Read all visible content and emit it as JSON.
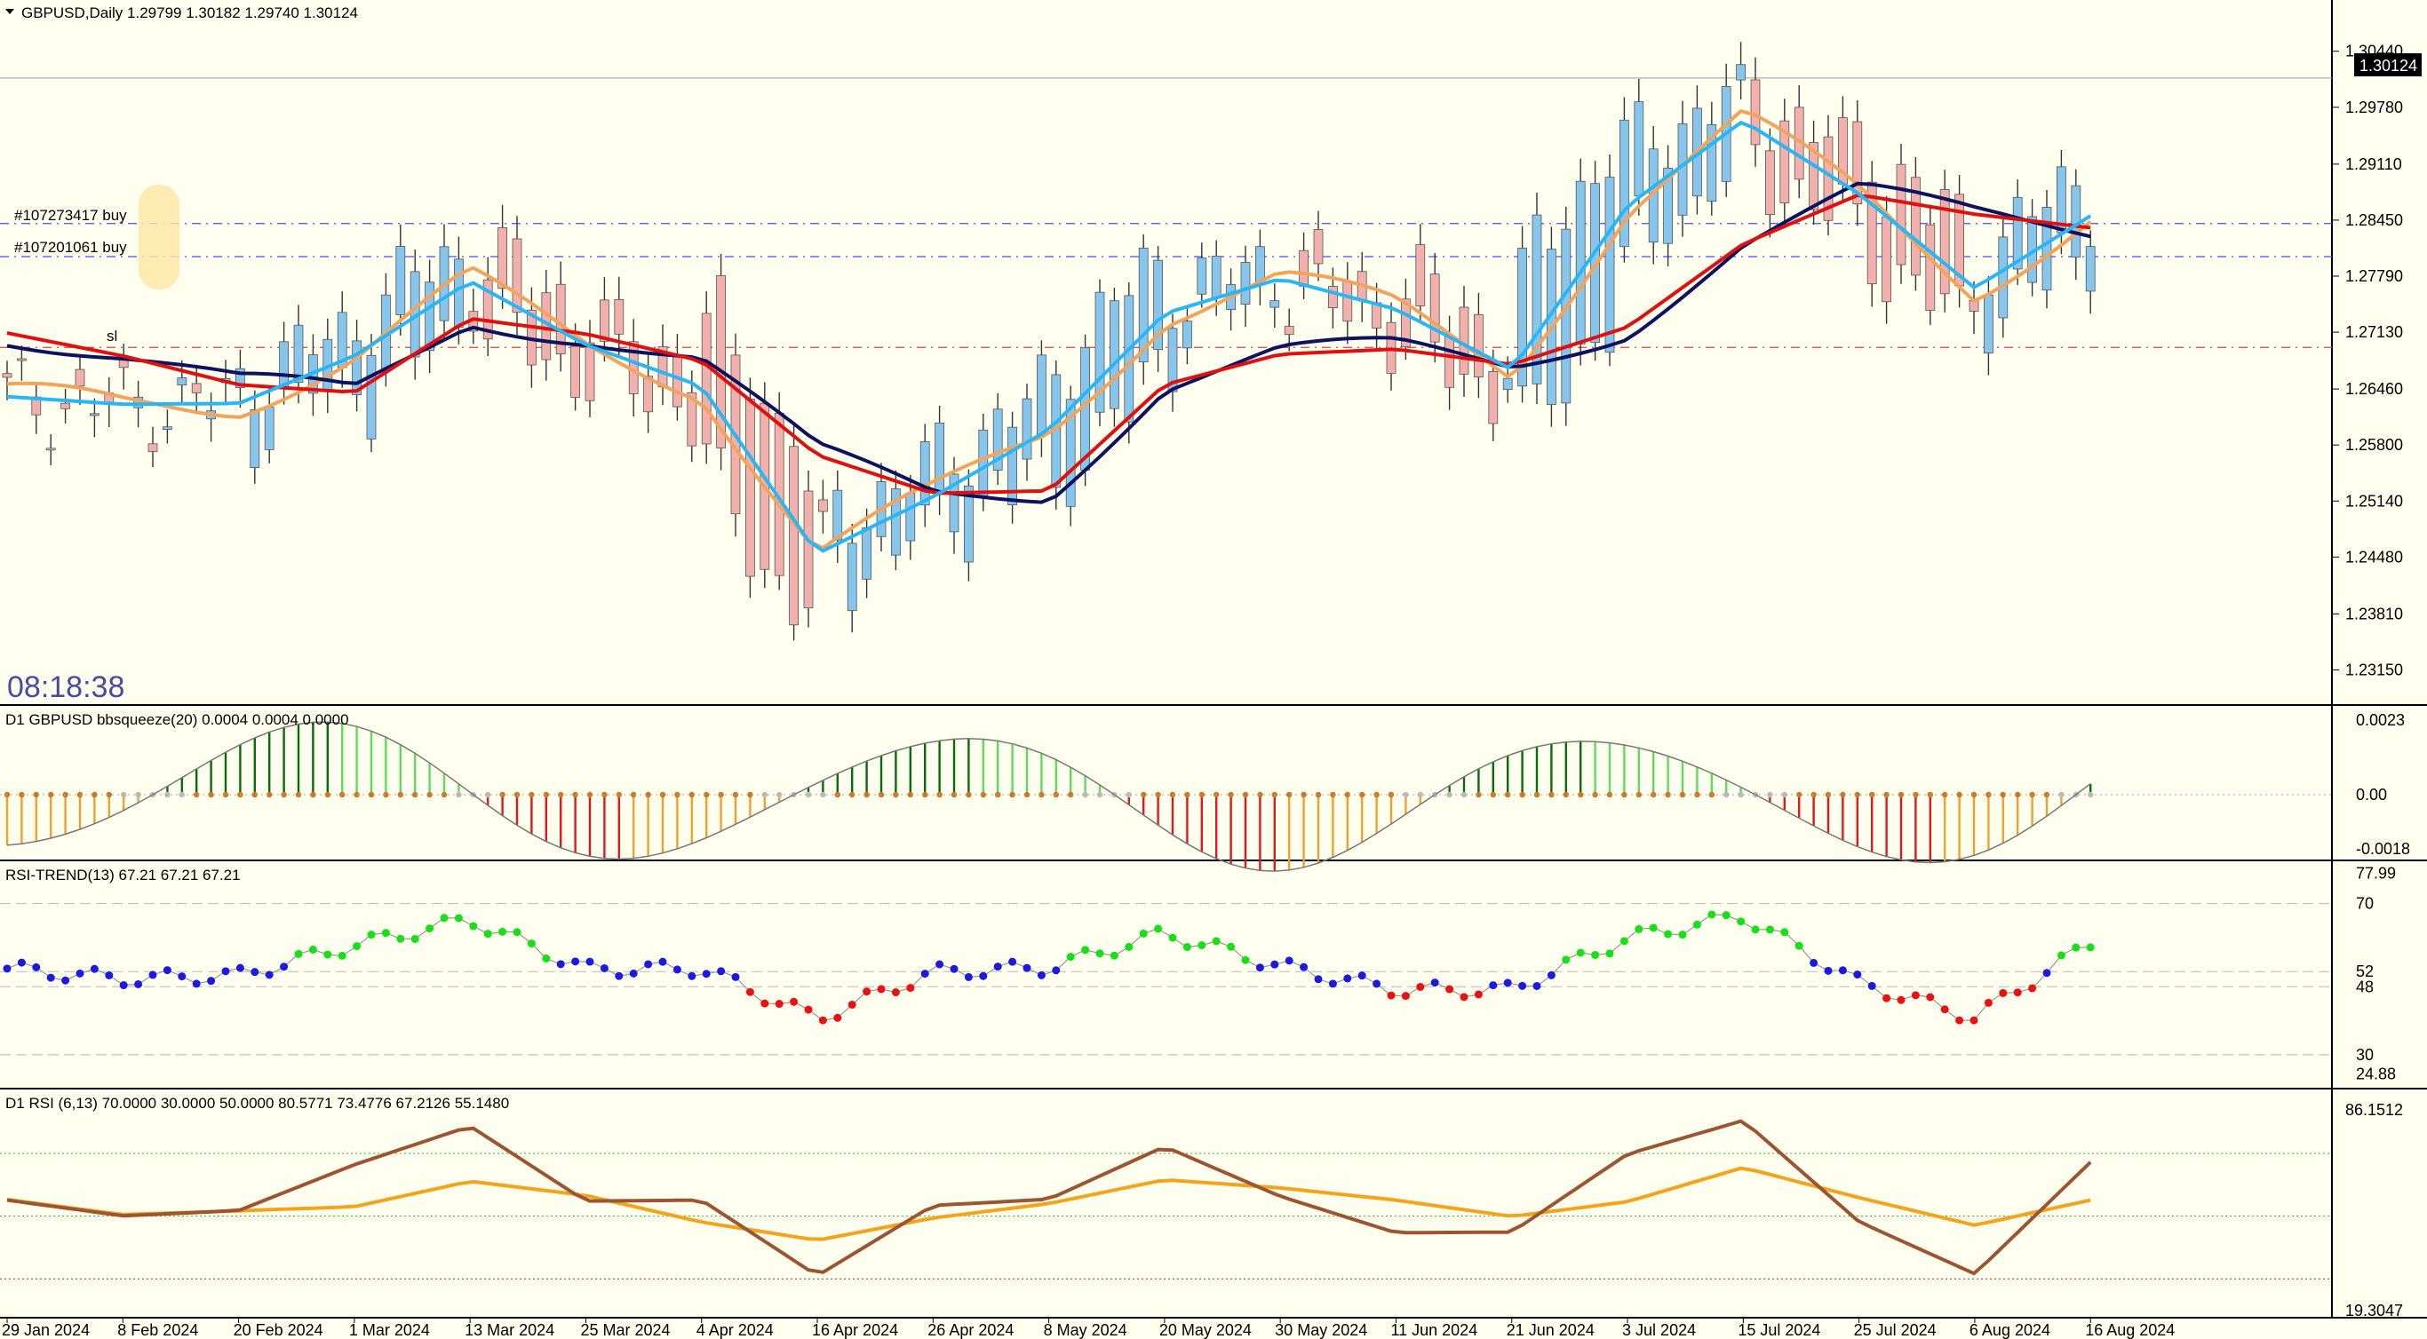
{
  "colors": {
    "background": "#fffff0",
    "bull_candle": "#87c6ec",
    "bear_candle": "#f2b0ad",
    "ma_fast": "#29b6f6",
    "ma_slow": "#0d1260",
    "ma_orange": "#f2a45c",
    "ma_red": "#e01010",
    "rsi_line": "#9c5530",
    "rsi_signal": "#f5a31b"
  },
  "panels": {
    "main": {
      "header": "GBPUSD,Daily  1.29799 1.30182 1.29740 1.30124",
      "clock": "08:18:38",
      "price_box": "1.30124",
      "orders": [
        "#107273417 buy",
        "#107201061 buy"
      ],
      "sl_label": "sl"
    },
    "bbsqueeze": {
      "header": "D1 GBPUSD bbsqueeze(20) 0.0004 0.0004 0.0000"
    },
    "rsi_trend": {
      "header": "RSI-TREND(13) 67.21 67.21 67.21"
    },
    "rsi": {
      "header": "D1 RSI  (6,13) 70.0000 30.0000 50.0000 80.5771 73.4776 67.2126 55.1480"
    }
  },
  "chart_data": {
    "type": "line",
    "x": [
      "29 Jan 2024",
      "8 Feb 2024",
      "20 Feb 2024",
      "1 Mar 2024",
      "13 Mar 2024",
      "25 Mar 2024",
      "4 Apr 2024",
      "16 Apr 2024",
      "26 Apr 2024",
      "8 May 2024",
      "20 May 2024",
      "30 May 2024",
      "11 Jun 2024",
      "21 Jun 2024",
      "3 Jul 2024",
      "15 Jul 2024",
      "25 Jul 2024",
      "6 Aug 2024",
      "16 Aug 2024"
    ],
    "price_ticks": [
      "1.30440",
      "1.29780",
      "1.29110",
      "1.28450",
      "1.27790",
      "1.27130",
      "1.26460",
      "1.25800",
      "1.25140",
      "1.24480",
      "1.23810",
      "1.23150"
    ],
    "price_range": [
      1.2282,
      1.3073
    ],
    "last_price": 1.30124,
    "ma_red": [
      1.2712,
      1.2685,
      1.2651,
      1.2642,
      1.2729,
      1.2711,
      1.2679,
      1.2568,
      1.2523,
      1.2526,
      1.2651,
      1.2687,
      1.2693,
      1.2675,
      1.2719,
      1.2817,
      1.2875,
      1.2852,
      1.2836
    ],
    "ma_fast": [
      1.2637,
      1.2628,
      1.2629,
      1.2685,
      1.2773,
      1.2698,
      1.2649,
      1.2452,
      1.2519,
      1.2598,
      1.2735,
      1.2776,
      1.274,
      1.2669,
      1.2862,
      1.2962,
      1.2876,
      1.2765,
      1.285
    ],
    "bbsqueeze_ticks": [
      "0.0023",
      "0.00",
      "-0.0018"
    ],
    "rsi_trend_ticks": [
      "77.99",
      "70",
      "52",
      "48",
      "30",
      "24.88"
    ],
    "rsi_ticks": [
      "86.1512",
      "19.3047"
    ],
    "rsi_levels": [
      70,
      50,
      30
    ],
    "rsi_values": [
      55.1,
      50.1,
      51.8,
      66.4,
      78.7,
      54.8,
      55.1,
      31.0,
      53.4,
      55.4,
      72.2,
      56.3,
      44.7,
      44.9,
      69.8,
      80.5,
      48.2,
      31.6,
      67.2
    ],
    "signal_values": [
      55.3,
      50.5,
      51.7,
      53.0,
      61.1,
      56.6,
      48.1,
      42.3,
      49.4,
      54.0,
      61.6,
      59.0,
      55.1,
      49.9,
      54.6,
      65.5,
      55.9,
      47.1,
      55.1
    ]
  }
}
